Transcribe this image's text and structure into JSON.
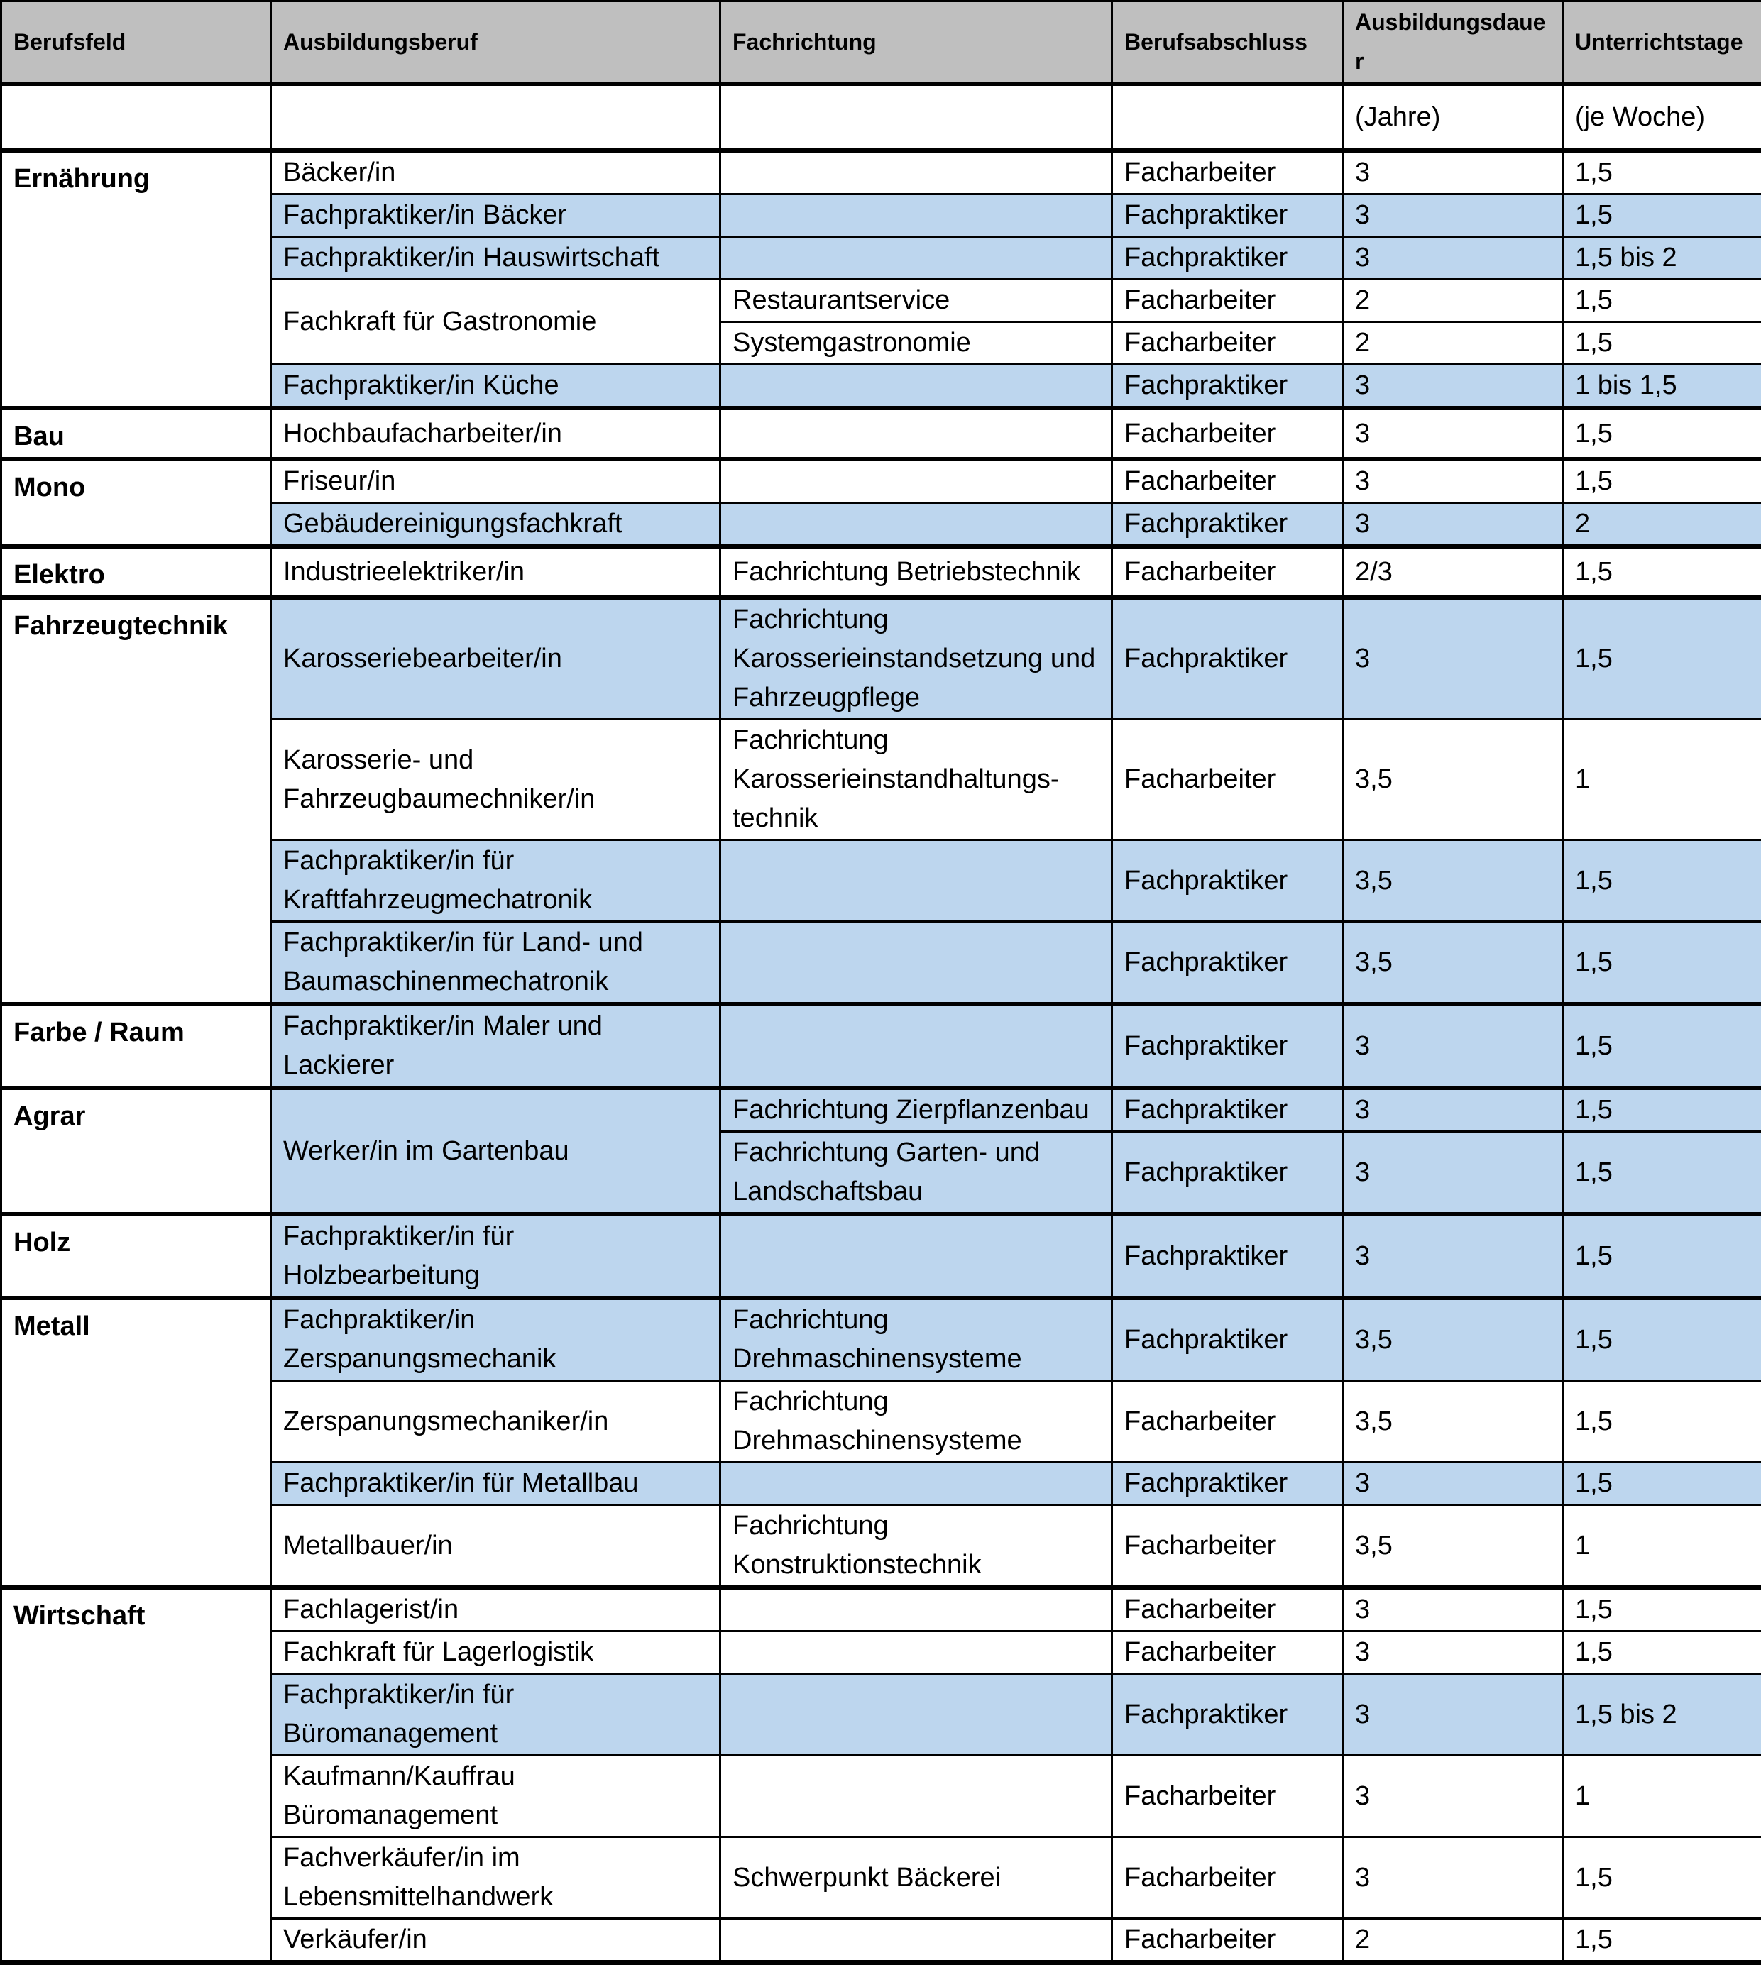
{
  "colors": {
    "header_bg": "#bfbfbf",
    "highlight_bg": "#bdd6ee",
    "border": "#000000",
    "page_bg": "#ffffff"
  },
  "table": {
    "columns": [
      {
        "label": "Berufsfeld",
        "sub": ""
      },
      {
        "label": "Ausbildungsberuf",
        "sub": ""
      },
      {
        "label": "Fachrichtung",
        "sub": ""
      },
      {
        "label": "Berufsabschluss",
        "sub": ""
      },
      {
        "label": "Ausbildungsdauer",
        "sub": "(Jahre)"
      },
      {
        "label": "Unterrichtstage",
        "sub": "(je Woche)"
      }
    ],
    "groups": [
      {
        "berufsfeld": "Ernährung",
        "rows": [
          {
            "beruf": "Bäcker/in",
            "beruf_span": 1,
            "fachrichtung": "",
            "abschluss": "Facharbeiter",
            "dauer": "3",
            "tage": "1,5",
            "hl": false
          },
          {
            "beruf": "Fachpraktiker/in Bäcker",
            "beruf_span": 1,
            "fachrichtung": "",
            "abschluss": "Fachpraktiker",
            "dauer": "3",
            "tage": "1,5",
            "hl": true
          },
          {
            "beruf": "Fachpraktiker/in Hauswirtschaft",
            "beruf_span": 1,
            "fachrichtung": "",
            "abschluss": "Fachpraktiker",
            "dauer": "3",
            "tage": "1,5 bis 2",
            "hl": true
          },
          {
            "beruf": "Fachkraft für Gastronomie",
            "beruf_span": 2,
            "fachrichtung": "Restaurantservice",
            "abschluss": "Facharbeiter",
            "dauer": "2",
            "tage": "1,5",
            "hl": false
          },
          {
            "beruf": null,
            "beruf_span": 0,
            "fachrichtung": "Systemgastronomie",
            "abschluss": "Facharbeiter",
            "dauer": "2",
            "tage": "1,5",
            "hl": false
          },
          {
            "beruf": "Fachpraktiker/in Küche",
            "beruf_span": 1,
            "fachrichtung": "",
            "abschluss": "Fachpraktiker",
            "dauer": "3",
            "tage": "1 bis 1,5",
            "hl": true
          }
        ]
      },
      {
        "berufsfeld": "Bau",
        "rows": [
          {
            "beruf": "Hochbaufacharbeiter/in",
            "beruf_span": 1,
            "fachrichtung": "",
            "abschluss": "Facharbeiter",
            "dauer": "3",
            "tage": "1,5",
            "hl": false
          }
        ]
      },
      {
        "berufsfeld": "Mono",
        "rows": [
          {
            "beruf": "Friseur/in",
            "beruf_span": 1,
            "fachrichtung": "",
            "abschluss": "Facharbeiter",
            "dauer": "3",
            "tage": "1,5",
            "hl": false
          },
          {
            "beruf": "Gebäudereinigungsfachkraft",
            "beruf_span": 1,
            "fachrichtung": "",
            "abschluss": "Fachpraktiker",
            "dauer": "3",
            "tage": "2",
            "hl": true
          }
        ]
      },
      {
        "berufsfeld": "Elektro",
        "rows": [
          {
            "beruf": "Industrieelektriker/in",
            "beruf_span": 1,
            "fachrichtung": "Fachrichtung Betriebstechnik",
            "abschluss": "Facharbeiter",
            "dauer": "2/3",
            "tage": "1,5",
            "hl": false
          }
        ]
      },
      {
        "berufsfeld": "Fahrzeugtechnik",
        "rows": [
          {
            "beruf": "Karosseriebearbeiter/in",
            "beruf_span": 1,
            "fachrichtung": "Fachrichtung Karosserieinstandsetzung und Fahrzeugpflege",
            "abschluss": "Fachpraktiker",
            "dauer": "3",
            "tage": "1,5",
            "hl": true
          },
          {
            "beruf": "Karosserie- und Fahrzeugbaumechniker/in",
            "beruf_span": 1,
            "fachrichtung": "Fachrichtung Karosserieinstandhaltungs-technik",
            "abschluss": "Facharbeiter",
            "dauer": "3,5",
            "tage": "1",
            "hl": false
          },
          {
            "beruf": "Fachpraktiker/in für Kraftfahrzeugmechatronik",
            "beruf_span": 1,
            "fachrichtung": "",
            "abschluss": "Fachpraktiker",
            "dauer": "3,5",
            "tage": "1,5",
            "hl": true
          },
          {
            "beruf": "Fachpraktiker/in für Land- und Baumaschinenmechatronik",
            "beruf_span": 1,
            "fachrichtung": "",
            "abschluss": "Fachpraktiker",
            "dauer": "3,5",
            "tage": "1,5",
            "hl": true
          }
        ]
      },
      {
        "berufsfeld": "Farbe / Raum",
        "rows": [
          {
            "beruf": "Fachpraktiker/in Maler und Lackierer",
            "beruf_span": 1,
            "fachrichtung": "",
            "abschluss": "Fachpraktiker",
            "dauer": "3",
            "tage": "1,5",
            "hl": true
          }
        ]
      },
      {
        "berufsfeld": "Agrar",
        "rows": [
          {
            "beruf": "Werker/in im Gartenbau",
            "beruf_span": 2,
            "fachrichtung": "Fachrichtung Zierpflanzenbau",
            "abschluss": "Fachpraktiker",
            "dauer": "3",
            "tage": "1,5",
            "hl": true
          },
          {
            "beruf": null,
            "beruf_span": 0,
            "fachrichtung": "Fachrichtung Garten- und Landschaftsbau",
            "abschluss": "Fachpraktiker",
            "dauer": "3",
            "tage": "1,5",
            "hl": true
          }
        ]
      },
      {
        "berufsfeld": "Holz",
        "rows": [
          {
            "beruf": "Fachpraktiker/in für Holzbearbeitung",
            "beruf_span": 1,
            "fachrichtung": "",
            "abschluss": "Fachpraktiker",
            "dauer": "3",
            "tage": "1,5",
            "hl": true
          }
        ]
      },
      {
        "berufsfeld": "Metall",
        "rows": [
          {
            "beruf": "Fachpraktiker/in Zerspanungsmechanik",
            "beruf_span": 1,
            "fachrichtung": "Fachrichtung Drehmaschinensysteme",
            "abschluss": "Fachpraktiker",
            "dauer": "3,5",
            "tage": "1,5",
            "hl": true
          },
          {
            "beruf": "Zerspanungsmechaniker/in",
            "beruf_span": 1,
            "fachrichtung": "Fachrichtung Drehmaschinensysteme",
            "abschluss": "Facharbeiter",
            "dauer": "3,5",
            "tage": "1,5",
            "hl": false
          },
          {
            "beruf": "Fachpraktiker/in für Metallbau",
            "beruf_span": 1,
            "fachrichtung": "",
            "abschluss": "Fachpraktiker",
            "dauer": "3",
            "tage": "1,5",
            "hl": true
          },
          {
            "beruf": "Metallbauer/in",
            "beruf_span": 1,
            "fachrichtung": "Fachrichtung Konstruktionstechnik",
            "abschluss": "Facharbeiter",
            "dauer": "3,5",
            "tage": "1",
            "hl": false
          }
        ]
      },
      {
        "berufsfeld": "Wirtschaft",
        "rows": [
          {
            "beruf": "Fachlagerist/in",
            "beruf_span": 1,
            "fachrichtung": "",
            "abschluss": "Facharbeiter",
            "dauer": "3",
            "tage": "1,5",
            "hl": false
          },
          {
            "beruf": "Fachkraft für Lagerlogistik",
            "beruf_span": 1,
            "fachrichtung": "",
            "abschluss": "Facharbeiter",
            "dauer": "3",
            "tage": "1,5",
            "hl": false
          },
          {
            "beruf": "Fachpraktiker/in für Büromanagement",
            "beruf_span": 1,
            "fachrichtung": "",
            "abschluss": "Fachpraktiker",
            "dauer": "3",
            "tage": "1,5 bis 2",
            "hl": true
          },
          {
            "beruf": "Kaufmann/Kauffrau Büromanagement",
            "beruf_span": 1,
            "fachrichtung": "",
            "abschluss": "Facharbeiter",
            "dauer": "3",
            "tage": "1",
            "hl": false
          },
          {
            "beruf": "Fachverkäufer/in im Lebensmittelhandwerk",
            "beruf_span": 1,
            "fachrichtung": "Schwerpunkt Bäckerei",
            "abschluss": "Facharbeiter",
            "dauer": "3",
            "tage": "1,5",
            "hl": false
          },
          {
            "beruf": "Verkäufer/in",
            "beruf_span": 1,
            "fachrichtung": "",
            "abschluss": "Facharbeiter",
            "dauer": "2",
            "tage": "1,5",
            "hl": false
          }
        ]
      }
    ]
  }
}
